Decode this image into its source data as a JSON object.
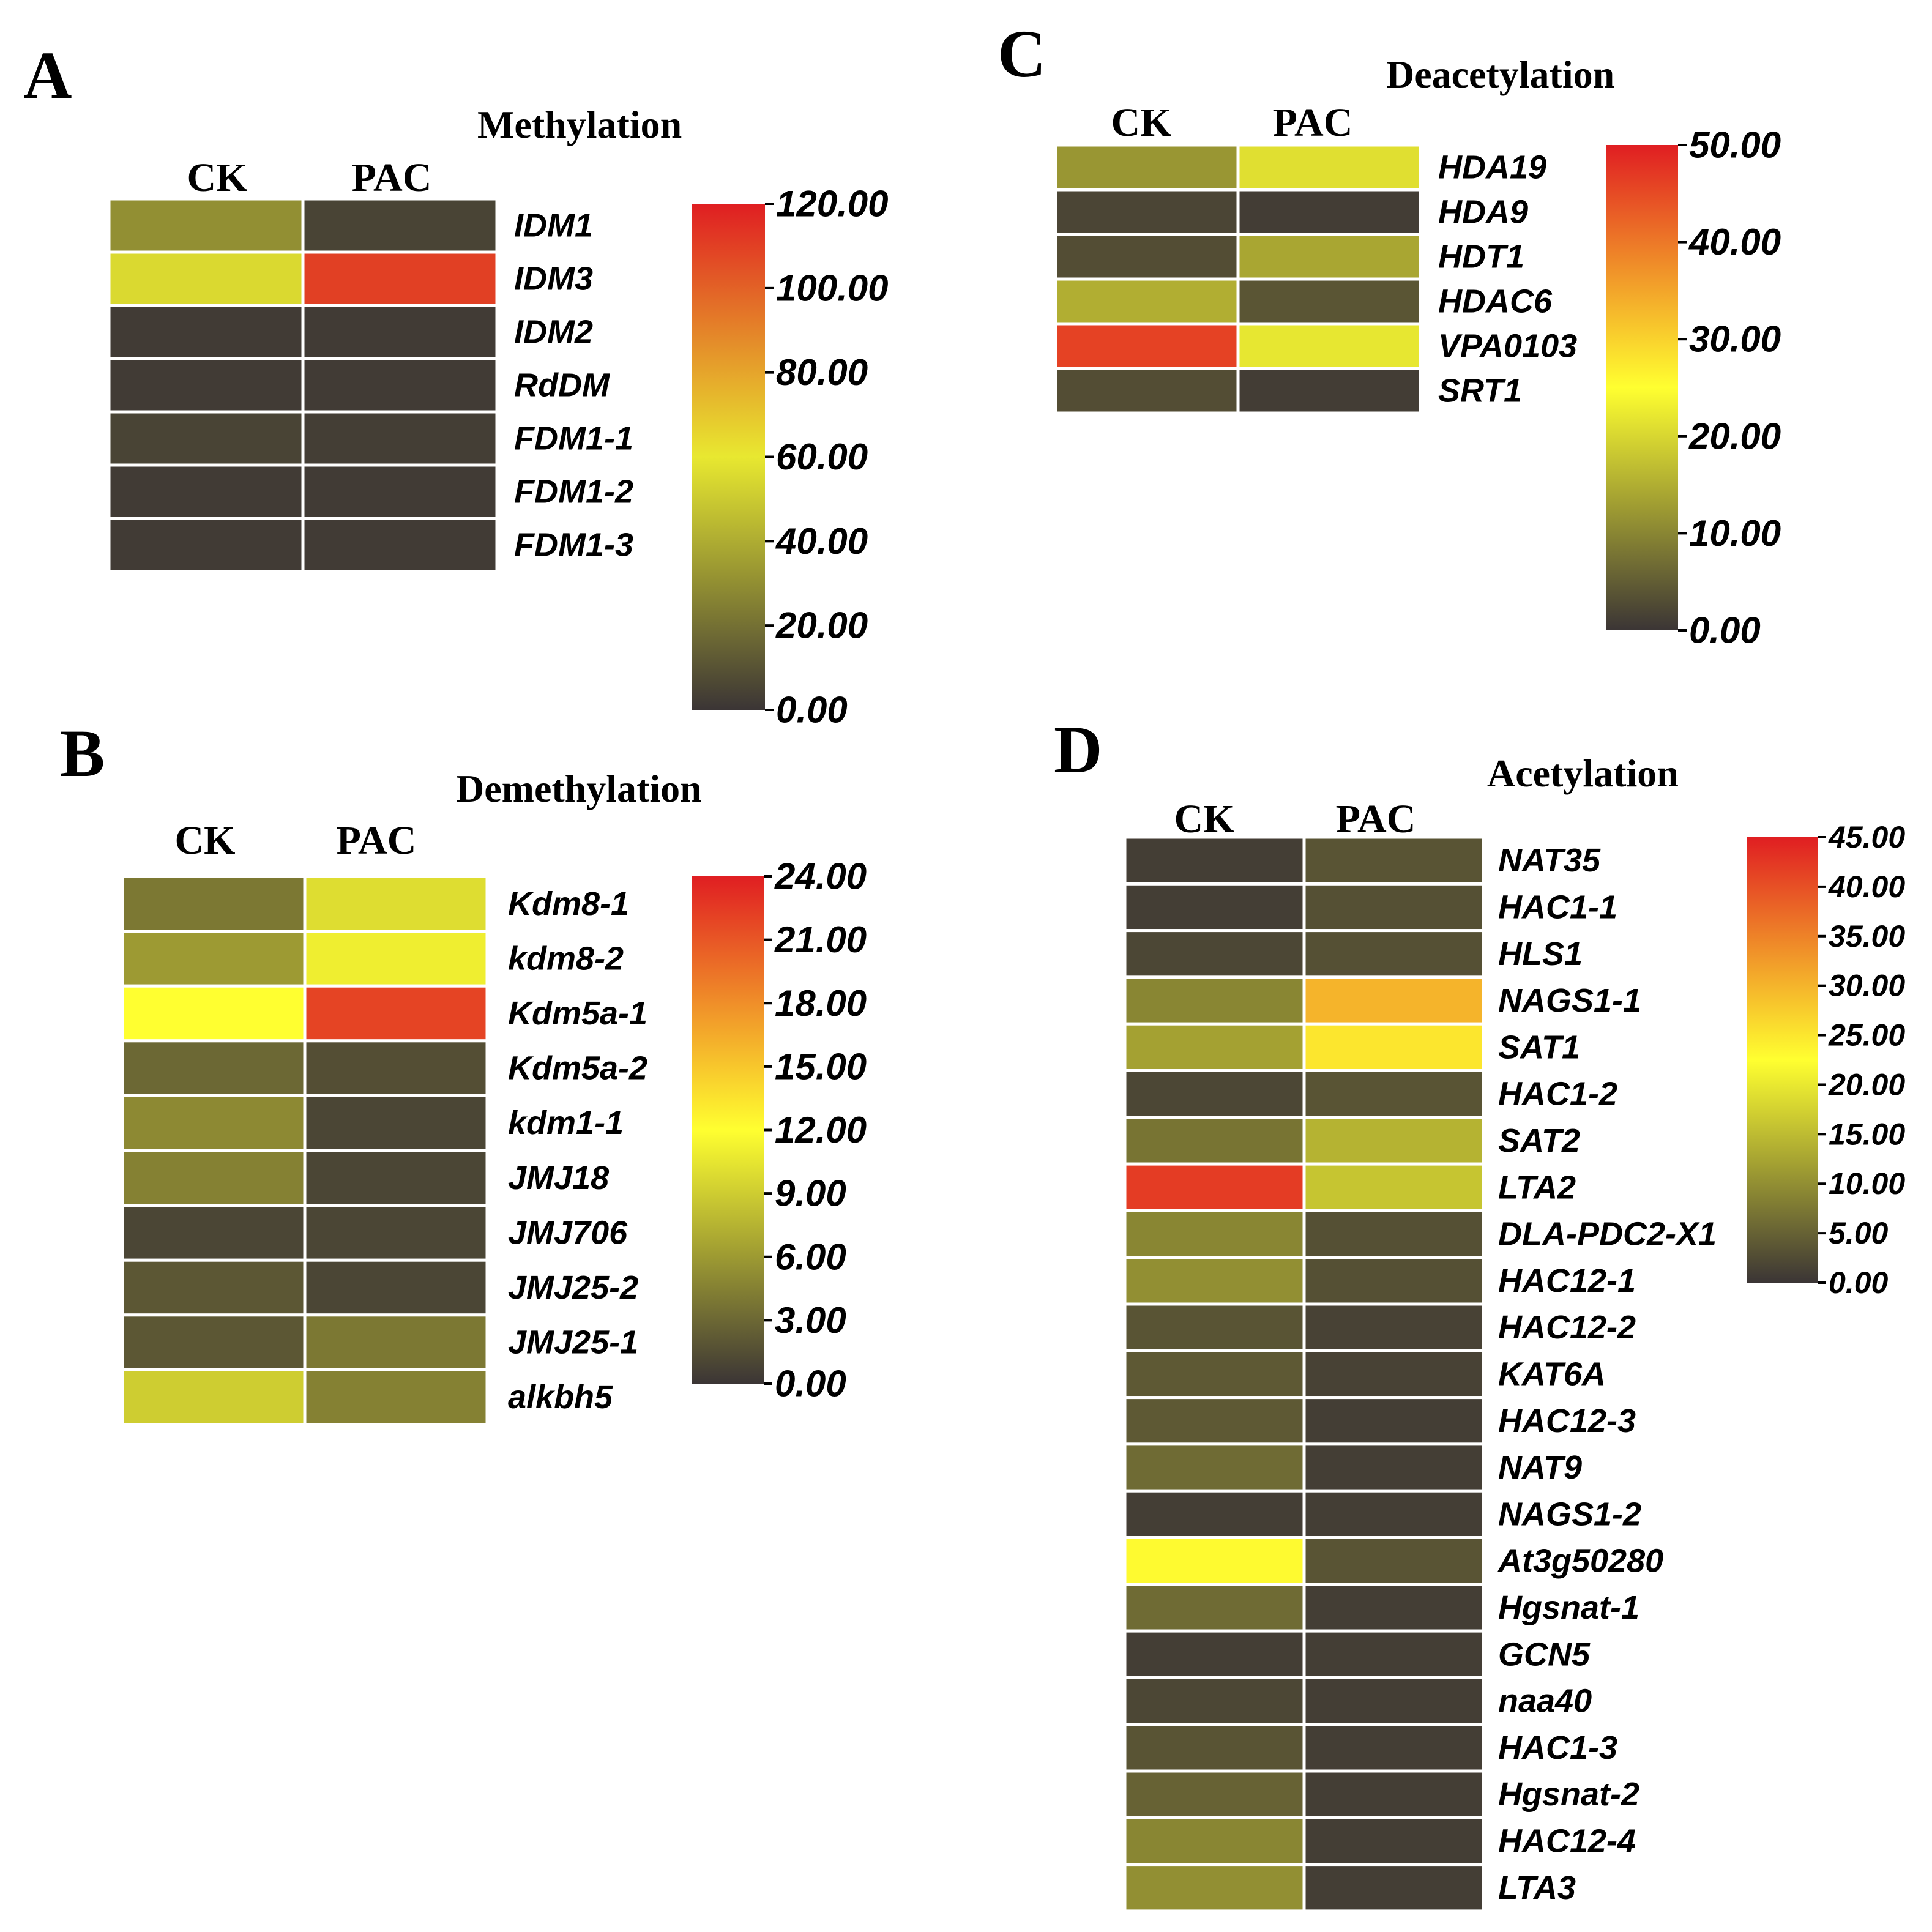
{
  "chart_data": [
    {
      "type": "heatmap",
      "panel_label": "A",
      "title": "Methylation",
      "columns": [
        "CK",
        "PAC"
      ],
      "rows": [
        "IDM1",
        "IDM3",
        "IDM2",
        "RdDM",
        "FDM1-1",
        "FDM1-2",
        "FDM1-3"
      ],
      "values": [
        [
          30,
          5
        ],
        [
          55,
          110
        ],
        [
          2,
          2
        ],
        [
          2,
          2
        ],
        [
          5,
          3
        ],
        [
          2,
          2
        ],
        [
          2,
          2
        ]
      ],
      "colorbar": {
        "min": 0,
        "max": 120,
        "ticks": [
          "0.00",
          "20.00",
          "40.00",
          "60.00",
          "80.00",
          "100.00",
          "120.00"
        ]
      },
      "colorscale": [
        "#3b3535",
        "#e8e830",
        "#e01e22"
      ]
    },
    {
      "type": "heatmap",
      "panel_label": "B",
      "title": "Demethylation",
      "columns": [
        "CK",
        "PAC"
      ],
      "rows": [
        "Kdm8-1",
        "kdm8-2",
        "Kdm5a-1",
        "Kdm5a-2",
        "kdm1-1",
        "JMJ18",
        "JMJ706",
        "JMJ25-2",
        "JMJ25-1",
        "alkbh5"
      ],
      "values": [
        [
          4,
          10
        ],
        [
          6,
          11
        ],
        [
          12,
          22
        ],
        [
          3,
          1.5
        ],
        [
          5,
          1
        ],
        [
          4.5,
          1
        ],
        [
          1,
          1
        ],
        [
          2,
          1
        ],
        [
          2,
          4
        ],
        [
          9,
          4.5
        ]
      ],
      "colorbar": {
        "min": 0,
        "max": 24,
        "ticks": [
          "0.00",
          "3.00",
          "6.00",
          "9.00",
          "12.00",
          "15.00",
          "18.00",
          "21.00",
          "24.00"
        ]
      },
      "colorscale": [
        "#3b3535",
        "#ffff30",
        "#e01e22"
      ]
    },
    {
      "type": "heatmap",
      "panel_label": "C",
      "title": "Deacetylation",
      "columns": [
        "CK",
        "PAC"
      ],
      "rows": [
        "HDA19",
        "HDA9",
        "HDT1",
        "HDAC6",
        "VPA0103",
        "SRT1"
      ],
      "values": [
        [
          12,
          21
        ],
        [
          2,
          1
        ],
        [
          3,
          14
        ],
        [
          15,
          4
        ],
        [
          46,
          22
        ],
        [
          3,
          1
        ]
      ],
      "colorbar": {
        "min": 0,
        "max": 50,
        "ticks": [
          "0.00",
          "10.00",
          "20.00",
          "30.00",
          "40.00",
          "50.00"
        ]
      },
      "colorscale": [
        "#3b3535",
        "#ffff30",
        "#e01e22"
      ]
    },
    {
      "type": "heatmap",
      "panel_label": "D",
      "title": "Acetylation",
      "columns": [
        "CK",
        "PAC"
      ],
      "rows": [
        "NAT35",
        "HAC1-1",
        "HLS1",
        "NAGS1-1",
        "SAT1",
        "HAC1-2",
        "SAT2",
        "LTA2",
        "DLA-PDC2-X1",
        "HAC12-1",
        "HAC12-2",
        "KAT6A",
        "HAC12-3",
        "NAT9",
        "NAGS1-2",
        "At3g50280",
        "Hgsnat-1",
        "GCN5",
        "naa40",
        "HAC1-3",
        "Hgsnat-2",
        "HAC12-4",
        "LTA3"
      ],
      "values": [
        [
          1,
          3.5
        ],
        [
          1,
          3
        ],
        [
          2,
          3
        ],
        [
          9,
          30
        ],
        [
          12,
          25
        ],
        [
          2,
          3.5
        ],
        [
          7,
          14
        ],
        [
          42,
          16
        ],
        [
          9,
          3
        ],
        [
          10,
          3
        ],
        [
          3.5,
          1.5
        ],
        [
          4,
          1.5
        ],
        [
          4,
          1
        ],
        [
          6,
          1
        ],
        [
          1,
          1
        ],
        [
          23,
          3.5
        ],
        [
          6,
          1
        ],
        [
          1,
          1
        ],
        [
          2,
          1
        ],
        [
          3.5,
          1
        ],
        [
          5,
          1
        ],
        [
          9,
          1
        ],
        [
          10,
          1
        ]
      ],
      "colorbar": {
        "min": 0,
        "max": 45,
        "ticks": [
          "0.00",
          "5.00",
          "10.00",
          "15.00",
          "20.00",
          "25.00",
          "30.00",
          "35.00",
          "40.00",
          "45.00"
        ]
      },
      "colorscale": [
        "#3b3535",
        "#ffff30",
        "#e01e22"
      ]
    }
  ]
}
